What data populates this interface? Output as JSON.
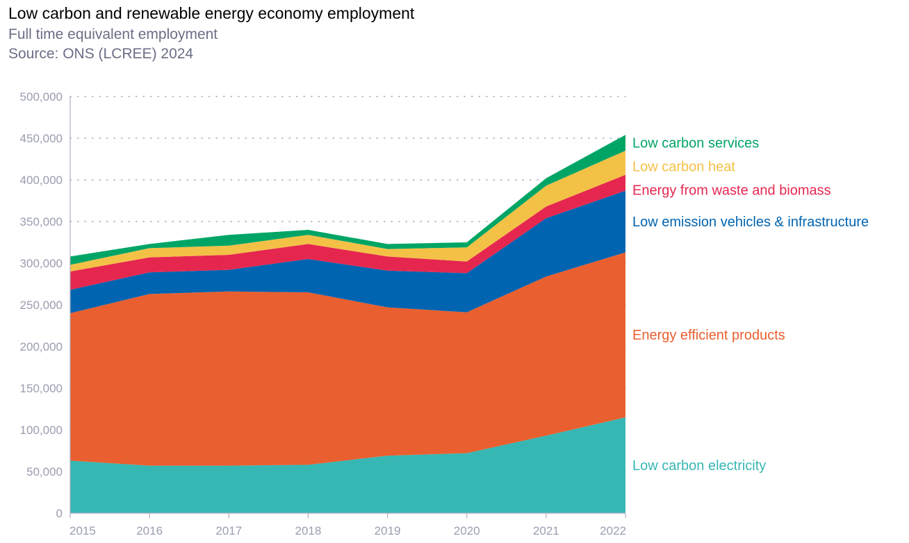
{
  "header": {
    "title": "Low carbon and renewable energy economy employment",
    "subtitle": "Full time equivalent employment",
    "source": "Source: ONS (LCREE) 2024"
  },
  "chart_data": {
    "type": "area",
    "stacked": true,
    "title": "Low carbon and renewable energy economy employment",
    "subtitle": "Full time equivalent employment",
    "categories": [
      "2015",
      "2016",
      "2017",
      "2018",
      "2019",
      "2020",
      "2021",
      "2022"
    ],
    "ylim": [
      0,
      500000
    ],
    "yticks": [
      0,
      50000,
      100000,
      150000,
      200000,
      250000,
      300000,
      350000,
      400000,
      450000,
      500000
    ],
    "ytick_labels": [
      "0",
      "50,000",
      "100,000",
      "150,000",
      "200,000",
      "250,000",
      "300,000",
      "350,000",
      "400,000",
      "450,000",
      "500,000"
    ],
    "grid": "horizontal dotted",
    "legend": "direct labels at right",
    "series": [
      {
        "name": "Low carbon electricity",
        "color": "#36b7b4",
        "values": [
          63000,
          57000,
          57000,
          58000,
          69000,
          72000,
          93000,
          115000
        ]
      },
      {
        "name": "Energy efficient products",
        "color": "#e95f2f",
        "values": [
          177000,
          206000,
          209000,
          207000,
          178000,
          169000,
          191000,
          198000
        ]
      },
      {
        "name": "Low emission vehicles & infrastructure",
        "color": "#0064b1",
        "values": [
          28000,
          26000,
          26000,
          40000,
          44000,
          47000,
          70000,
          74000
        ]
      },
      {
        "name": "Energy from waste and biomass",
        "color": "#e5274f",
        "values": [
          22000,
          18000,
          18000,
          18000,
          17000,
          14000,
          14000,
          19000
        ]
      },
      {
        "name": "Low carbon heat",
        "color": "#f4c147",
        "values": [
          8000,
          11000,
          11000,
          11000,
          9000,
          17000,
          25000,
          29000
        ]
      },
      {
        "name": "Low carbon services",
        "color": "#00a566",
        "values": [
          10000,
          5000,
          13000,
          6000,
          6000,
          6000,
          9000,
          19000
        ]
      }
    ]
  }
}
